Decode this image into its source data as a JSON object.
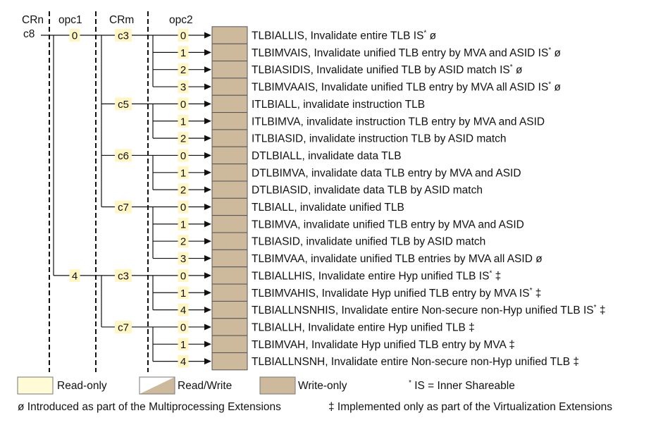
{
  "headers": {
    "crn": "CRn",
    "opc1": "opc1",
    "crm": "CRm",
    "opc2": "opc2"
  },
  "crn_value": "c8",
  "opc1_values": [
    "0",
    "4"
  ],
  "crm_groups": [
    {
      "opc1": "0",
      "crm": "c3",
      "rows": [
        {
          "opc2": "0",
          "name": "TLBIALLIS",
          "desc": ", Invalidate entire TLB IS",
          "sup": "*",
          "mark": " ø"
        },
        {
          "opc2": "1",
          "name": "TLBIMVAIS",
          "desc": ", Invalidate unified TLB entry by MVA and ASID IS",
          "sup": "*",
          "mark": " ø"
        },
        {
          "opc2": "2",
          "name": "TLBIASIDIS",
          "desc": ", Invalidate unified TLB by ASID match IS",
          "sup": "*",
          "mark": " ø"
        },
        {
          "opc2": "3",
          "name": "TLBIMVAAIS",
          "desc": ", Invalidate unified TLB entry by MVA all ASID IS",
          "sup": "*",
          "mark": " ø"
        }
      ]
    },
    {
      "opc1": "0",
      "crm": "c5",
      "rows": [
        {
          "opc2": "0",
          "name": "ITLBIALL",
          "desc": ", invalidate instruction TLB",
          "sup": "",
          "mark": ""
        },
        {
          "opc2": "1",
          "name": "ITLBIMVA",
          "desc": ", invalidate instruction TLB entry by MVA and ASID",
          "sup": "",
          "mark": ""
        },
        {
          "opc2": "2",
          "name": "ITLBIASID",
          "desc": ", invalidate instruction TLB by ASID match",
          "sup": "",
          "mark": ""
        }
      ]
    },
    {
      "opc1": "0",
      "crm": "c6",
      "rows": [
        {
          "opc2": "0",
          "name": "DTLBIALL",
          "desc": ", invalidate data TLB",
          "sup": "",
          "mark": ""
        },
        {
          "opc2": "1",
          "name": "DTLBIMVA",
          "desc": ", invalidate data TLB entry by MVA and ASID",
          "sup": "",
          "mark": ""
        },
        {
          "opc2": "2",
          "name": "DTLBIASID",
          "desc": ", invalidate data TLB by ASID match",
          "sup": "",
          "mark": ""
        }
      ]
    },
    {
      "opc1": "0",
      "crm": "c7",
      "rows": [
        {
          "opc2": "0",
          "name": "TLBIALL",
          "desc": ", invalidate unified TLB",
          "sup": "",
          "mark": ""
        },
        {
          "opc2": "1",
          "name": "TLBIMVA",
          "desc": ", invalidate unified TLB entry by MVA and ASID",
          "sup": "",
          "mark": ""
        },
        {
          "opc2": "2",
          "name": "TLBIASID",
          "desc": ", invalidate unified TLB by ASID match",
          "sup": "",
          "mark": ""
        },
        {
          "opc2": "3",
          "name": "TLBIMVAA",
          "desc": ", invalidate unified TLB entries by MVA all ASID",
          "sup": "",
          "mark": " ø"
        }
      ]
    },
    {
      "opc1": "4",
      "crm": "c3",
      "rows": [
        {
          "opc2": "0",
          "name": "TLBIALLHIS",
          "desc": ", Invalidate entire Hyp unified TLB IS",
          "sup": "*",
          "mark": " ‡"
        },
        {
          "opc2": "1",
          "name": "TLBIMVAHIS",
          "desc": ", Invalidate Hyp unified TLB entry by MVA IS",
          "sup": "*",
          "mark": " ‡"
        },
        {
          "opc2": "4",
          "name": "TLBIALLNSNHIS",
          "desc": ", Invalidate entire Non-secure non-Hyp unified TLB IS",
          "sup": "*",
          "mark": " ‡"
        }
      ]
    },
    {
      "opc1": "4",
      "crm": "c7",
      "rows": [
        {
          "opc2": "0",
          "name": "TLBIALLH",
          "desc": ", Invalidate entire Hyp unified TLB",
          "sup": "",
          "mark": " ‡"
        },
        {
          "opc2": "1",
          "name": "TLBIMVAH",
          "desc": ", Invalidate Hyp unified TLB entry by MVA",
          "sup": "",
          "mark": " ‡"
        },
        {
          "opc2": "4",
          "name": "TLBIALLNSNH",
          "desc": ", Invalidate entire Non-secure non-Hyp unified TLB",
          "sup": "",
          "mark": " ‡"
        }
      ]
    }
  ],
  "legend": {
    "read_only": "Read-only",
    "read_write": "Read/Write",
    "write_only": "Write-only",
    "is_note_star": "*",
    "is_note": " IS = Inner Shareable"
  },
  "footnotes": {
    "mp": "ø Introduced as part of the Multiprocessing Extensions",
    "virt": "‡ Implemented only as part of the Virtualization Extensions"
  },
  "colors": {
    "write_only": "#cdb99c",
    "read_only": "#fffbd6",
    "number_highlight": "#fff6c4",
    "line": "#111111"
  }
}
